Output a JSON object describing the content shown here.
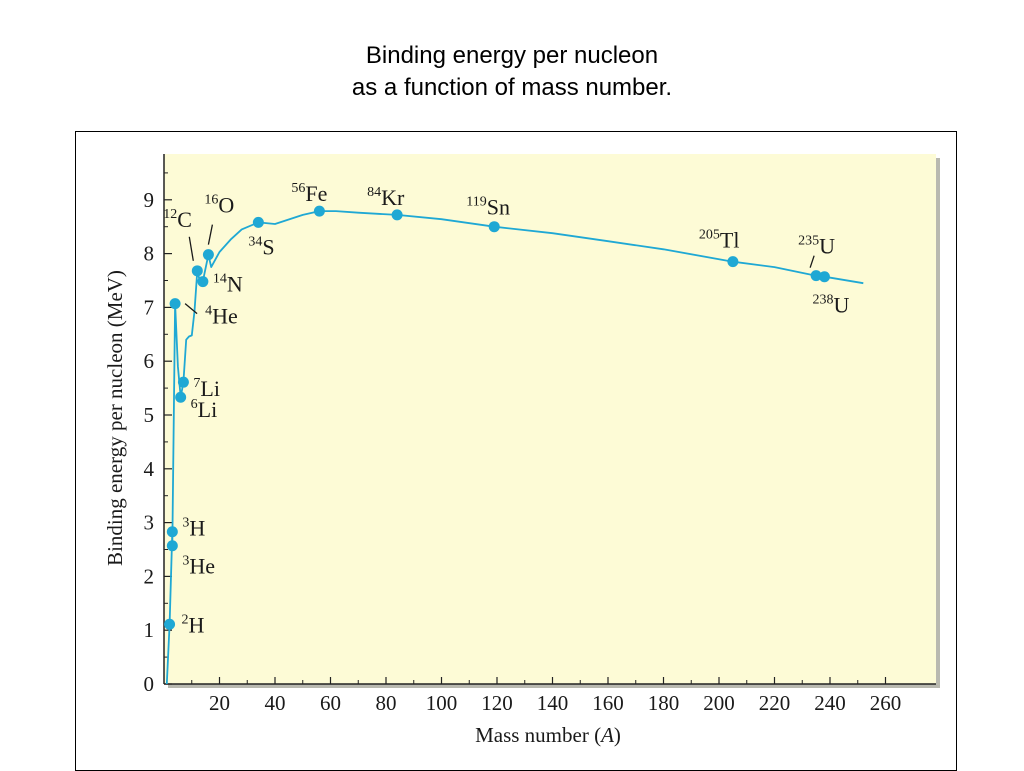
{
  "slide": {
    "title_line1": "Binding energy per nucleon",
    "title_line2": "as a function of mass number."
  },
  "colors": {
    "plot_background": "#fdfbd6",
    "curve": "#1fa8d4",
    "marker": "#1fa8d4",
    "axis": "#222222",
    "text": "#1a1a1a"
  },
  "chart_data": {
    "type": "line",
    "title": "",
    "xlabel_main": "Mass number (",
    "xlabel_var": "A",
    "xlabel_end": ")",
    "ylabel": "Binding energy per nucleon (MeV)",
    "xlim": [
      0,
      270
    ],
    "ylim": [
      0,
      10
    ],
    "x_ticks": [
      "20",
      "40",
      "60",
      "80",
      "100",
      "120",
      "140",
      "160",
      "180",
      "200",
      "220",
      "240",
      "260"
    ],
    "y_ticks": [
      "0",
      "1",
      "2",
      "3",
      "4",
      "5",
      "6",
      "7",
      "8",
      "9"
    ],
    "curve": [
      [
        1,
        0
      ],
      [
        2,
        1.11
      ],
      [
        3,
        2.83
      ],
      [
        3,
        2.57
      ],
      [
        4,
        7.07
      ],
      [
        5,
        5.9
      ],
      [
        6,
        5.33
      ],
      [
        7,
        5.61
      ],
      [
        8,
        6.4
      ],
      [
        9,
        6.46
      ],
      [
        10,
        6.48
      ],
      [
        11,
        6.93
      ],
      [
        12,
        7.68
      ],
      [
        13,
        7.47
      ],
      [
        14,
        7.48
      ],
      [
        16,
        7.98
      ],
      [
        17,
        7.75
      ],
      [
        20,
        8.03
      ],
      [
        24,
        8.26
      ],
      [
        28,
        8.45
      ],
      [
        34,
        8.58
      ],
      [
        40,
        8.55
      ],
      [
        50,
        8.72
      ],
      [
        56,
        8.79
      ],
      [
        62,
        8.79
      ],
      [
        70,
        8.76
      ],
      [
        84,
        8.72
      ],
      [
        100,
        8.64
      ],
      [
        119,
        8.5
      ],
      [
        140,
        8.38
      ],
      [
        160,
        8.23
      ],
      [
        180,
        8.08
      ],
      [
        205,
        7.85
      ],
      [
        220,
        7.75
      ],
      [
        235,
        7.59
      ],
      [
        238,
        7.57
      ],
      [
        252,
        7.45
      ]
    ],
    "points": [
      {
        "x": 2,
        "y": 1.11,
        "mass": "2",
        "element": "H"
      },
      {
        "x": 3,
        "y": 2.83,
        "mass": "3",
        "element": "H"
      },
      {
        "x": 3,
        "y": 2.57,
        "mass": "3",
        "element": "He"
      },
      {
        "x": 4,
        "y": 7.07,
        "mass": "4",
        "element": "He"
      },
      {
        "x": 6,
        "y": 5.33,
        "mass": "6",
        "element": "Li"
      },
      {
        "x": 7,
        "y": 5.61,
        "mass": "7",
        "element": "Li"
      },
      {
        "x": 12,
        "y": 7.68,
        "mass": "12",
        "element": "C"
      },
      {
        "x": 14,
        "y": 7.48,
        "mass": "14",
        "element": "N"
      },
      {
        "x": 16,
        "y": 7.98,
        "mass": "16",
        "element": "O"
      },
      {
        "x": 34,
        "y": 8.58,
        "mass": "34",
        "element": "S"
      },
      {
        "x": 56,
        "y": 8.79,
        "mass": "56",
        "element": "Fe"
      },
      {
        "x": 84,
        "y": 8.72,
        "mass": "84",
        "element": "Kr"
      },
      {
        "x": 119,
        "y": 8.5,
        "mass": "119",
        "element": "Sn"
      },
      {
        "x": 205,
        "y": 7.85,
        "mass": "205",
        "element": "Tl"
      },
      {
        "x": 235,
        "y": 7.59,
        "mass": "235",
        "element": "U"
      },
      {
        "x": 238,
        "y": 7.57,
        "mass": "238",
        "element": "U"
      }
    ]
  }
}
